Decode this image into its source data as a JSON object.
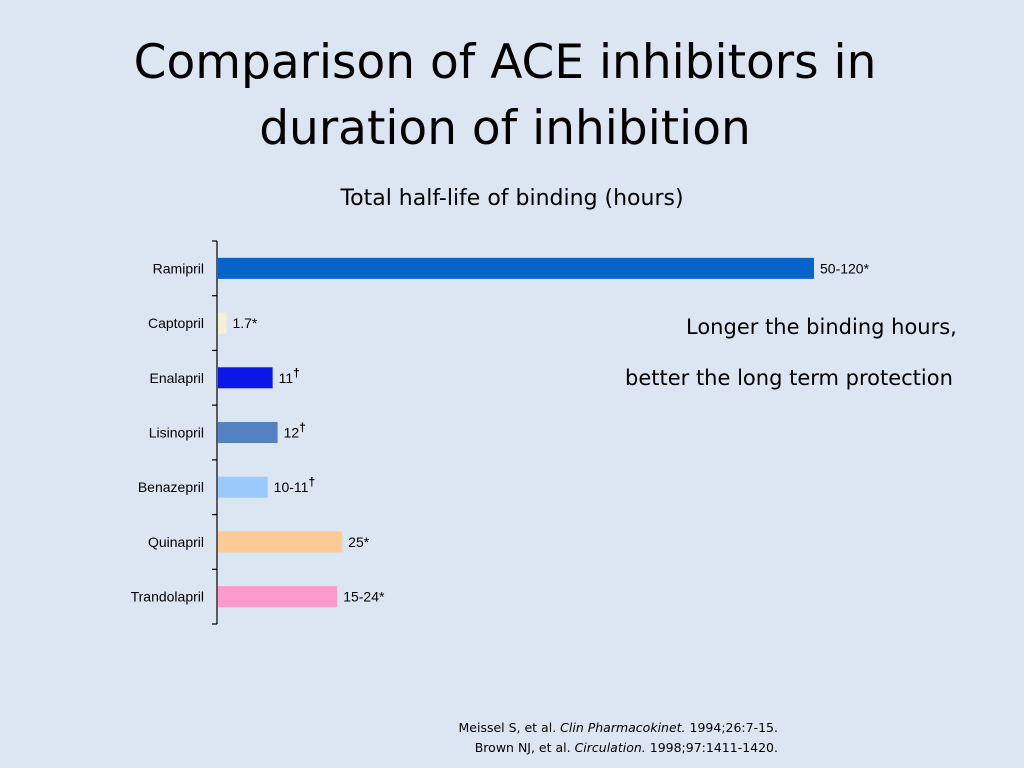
{
  "slide": {
    "title_line1": "Comparison of ACE inhibitors in",
    "title_line2": "duration of inhibition",
    "note_line1": "Longer the binding hours,",
    "note_line2": "better the long term protection",
    "references": [
      {
        "pre": "Meissel S, et al. ",
        "journal": "Clin Pharmacokinet.",
        "post": " 1994;26:7-15."
      },
      {
        "pre": "Brown NJ, et al. ",
        "journal": "Circulation.",
        "post": " 1998;97:1411-1420."
      }
    ]
  },
  "chart_data": {
    "type": "bar",
    "orientation": "horizontal",
    "title": "Total half-life of binding (hours)",
    "grid": false,
    "categories": [
      "Ramipril",
      "Captopril",
      "Enalapril",
      "Lisinopril",
      "Benazepril",
      "Quinapril",
      "Trandolapril"
    ],
    "values": [
      120,
      1.7,
      11,
      12,
      10,
      25,
      24
    ],
    "value_labels": [
      "50-120",
      "1.7",
      "11",
      "12",
      "10-11",
      "25",
      "15-24"
    ],
    "label_marks": [
      "*",
      "*",
      "†",
      "†",
      "†",
      "*",
      "*"
    ],
    "colors": [
      "#0563c9",
      "#f6f0d6",
      "#0a17e6",
      "#5381c2",
      "#9cc9fb",
      "#fdc994",
      "#fb9acb"
    ],
    "xlim": [
      0,
      120
    ]
  }
}
